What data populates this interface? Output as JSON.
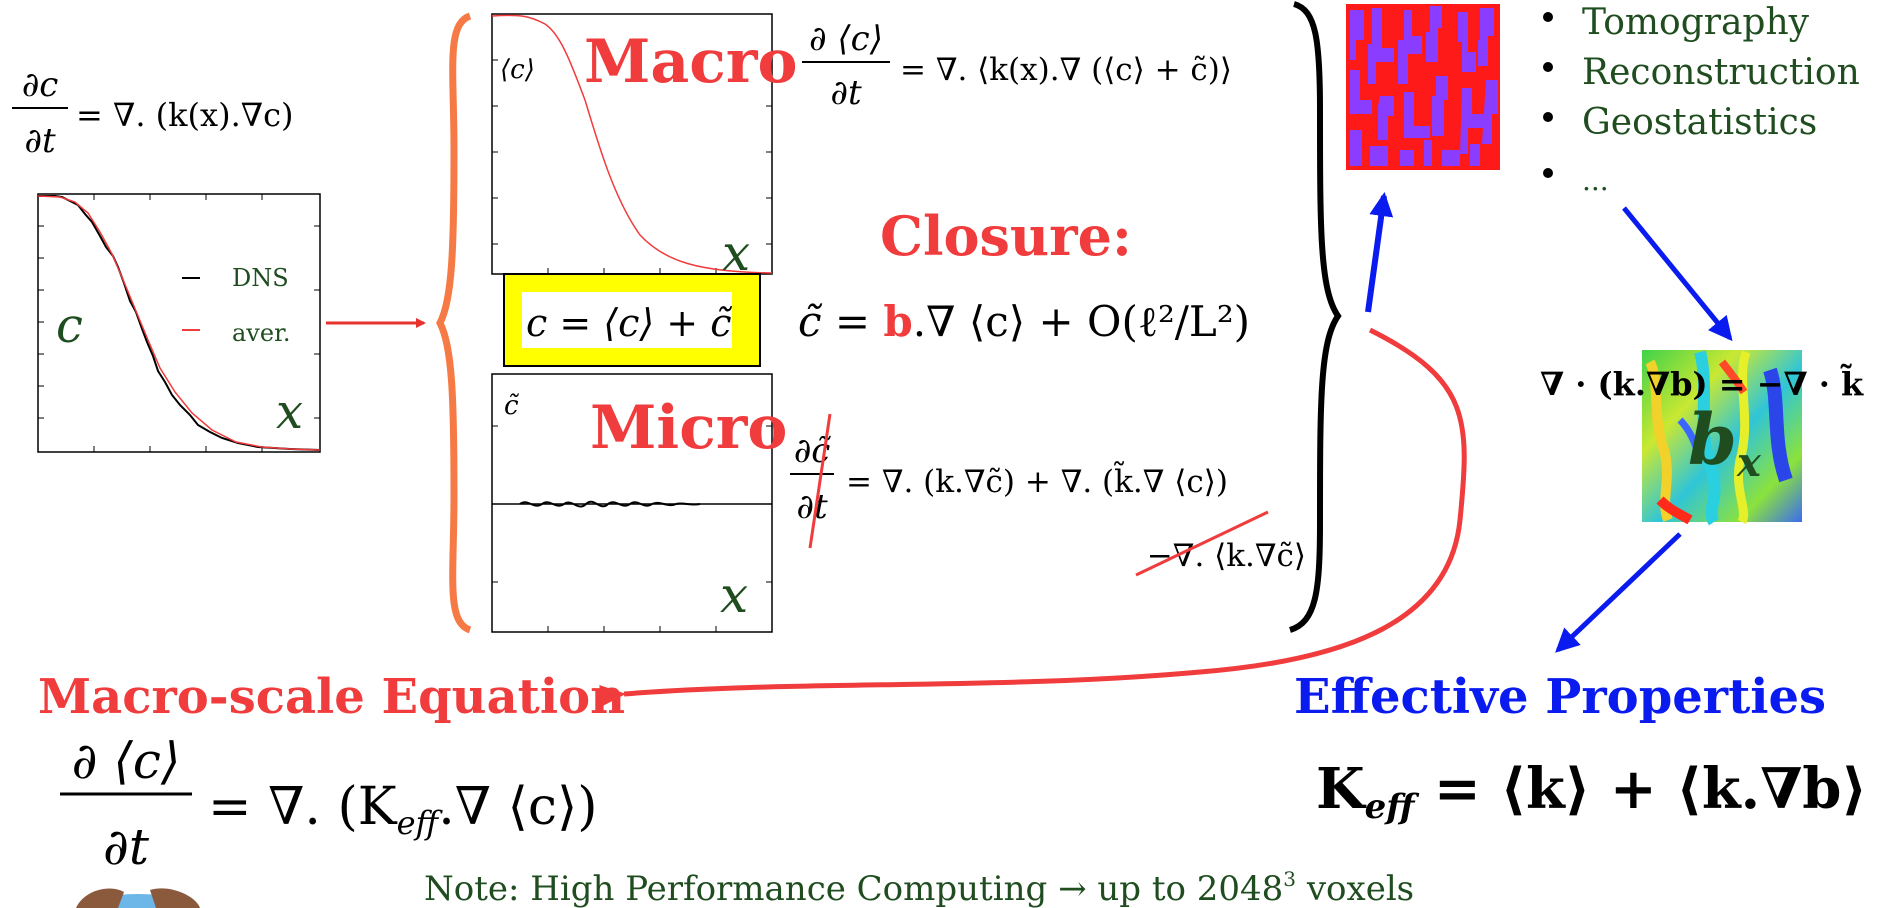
{
  "colors": {
    "title_red": "#f03c3c",
    "dark_green": "#1f4d1f",
    "blue": "#0a1bf0",
    "orange_brace": "#f57a45",
    "highlight_yellow": "#ffff00",
    "curve_red": "#f03c3c",
    "curve_black": "#000000"
  },
  "left_equation": {
    "lhs_num": "∂c",
    "lhs_den": "∂t",
    "rhs": "= ∇. (k(x).∇c)"
  },
  "dns_plot": {
    "y_label": "c",
    "x_label": "x",
    "legend": [
      {
        "name": "DNS",
        "color": "#000000"
      },
      {
        "name": "aver.",
        "color": "#f03c3c"
      }
    ]
  },
  "macro_plot": {
    "title": "Macro",
    "y_label": "⟨c⟩",
    "x_label": "x"
  },
  "decomposition": {
    "text": "c = ⟨c⟩ + c̃"
  },
  "micro_plot": {
    "title": "Micro",
    "y_label": "c̃",
    "x_label": "x"
  },
  "macro_equation": {
    "lhs_num": "∂ ⟨c⟩",
    "lhs_den": "∂t",
    "rhs": "= ∇. ⟨k(x).∇ (⟨c⟩ + c̃)⟩"
  },
  "closure": {
    "title": "Closure:",
    "lhs": "c̃ = ",
    "b": "b",
    "rhs": ".∇ ⟨c⟩ + O(ℓ²/L²)"
  },
  "micro_equation": {
    "lhs_num": "∂c̃",
    "lhs_den": "∂t",
    "rhs": "= ∇. (k.∇c̃) + ∇. (k̃.∇ ⟨c⟩)",
    "rhs2": "−∇. ⟨k.∇c̃⟩"
  },
  "methods": {
    "items": [
      "Tomography",
      "Reconstruction",
      "Geostatistics",
      "..."
    ]
  },
  "cell_problem": {
    "equation": "∇ · (k.∇b) = −∇ · k̃",
    "field_label": "b",
    "field_sub": "x"
  },
  "macro_scale": {
    "title": "Macro-scale Equation",
    "lhs_num": "∂ ⟨c⟩",
    "lhs_den": "∂t",
    "rhs": "= ∇. (K",
    "rhs_sub": "eff",
    "rhs_end": ".∇ ⟨c⟩)"
  },
  "effective": {
    "title": "Effective Properties",
    "k": "K",
    "k_sub": "eff",
    "rhs": " = ⟨k⟩ + ⟨k.∇b⟩"
  },
  "note": {
    "text": "Note: High Performance Computing → up to 2048",
    "sup": "3",
    "end": " voxels"
  }
}
